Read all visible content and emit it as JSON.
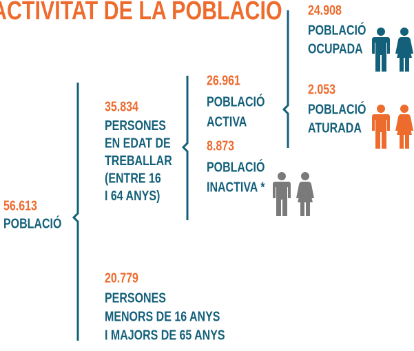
{
  "title": "ACTIVITAT DE LA POBLACIÓ",
  "nodes": [
    {
      "value": "56.613",
      "lines": [
        "POBLACIÓ"
      ]
    },
    {
      "value": "35.834",
      "lines": [
        "PERSONES",
        "EN EDAT DE",
        "TREBALLAR",
        "(ENTRE 16",
        "I 64 ANYS)"
      ]
    },
    {
      "value": "20.779",
      "lines": [
        "PERSONES",
        "MENORS DE 16 ANYS",
        "I MAJORS DE 65 ANYS"
      ]
    },
    {
      "value": "26.961",
      "lines": [
        "POBLACIÓ",
        "ACTIVA"
      ]
    },
    {
      "value": "8.873",
      "lines": [
        "POBLACIÓ",
        "INACTIVA *"
      ]
    },
    {
      "value": "24.908",
      "lines": [
        "POBLACIÓ",
        "OCUPADA"
      ]
    },
    {
      "value": "2.053",
      "lines": [
        "POBLACIÓ",
        "ATURADA"
      ]
    }
  ]
}
